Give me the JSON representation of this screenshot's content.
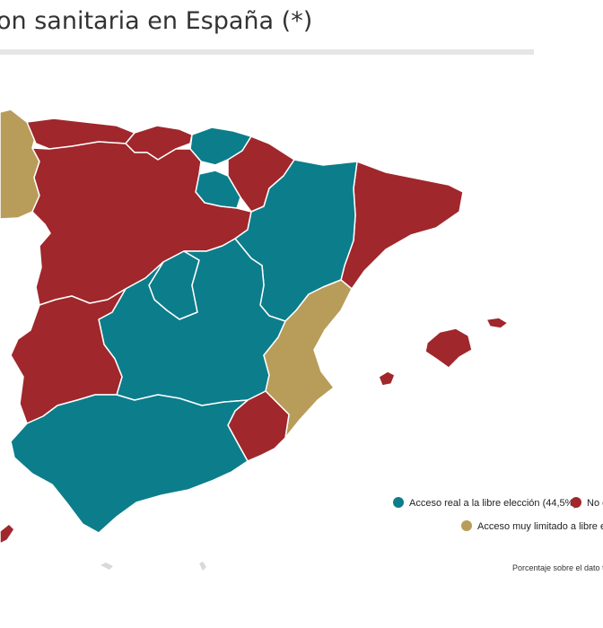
{
  "title": "on sanitaria en España (*)",
  "colors": {
    "libre_eleccion": "#0c7d8b",
    "no_eleccion": "#a0272b",
    "muy_limitado": "#b89c5a",
    "border": "#ffffff",
    "rule": "#e6e6e6"
  },
  "legend": {
    "item1": "Acceso real a la libre elección (44,5%)",
    "item2": "No e",
    "item3": "Acceso muy limitado a libre ele"
  },
  "footnote": "Porcentaje sobre el dato to"
}
